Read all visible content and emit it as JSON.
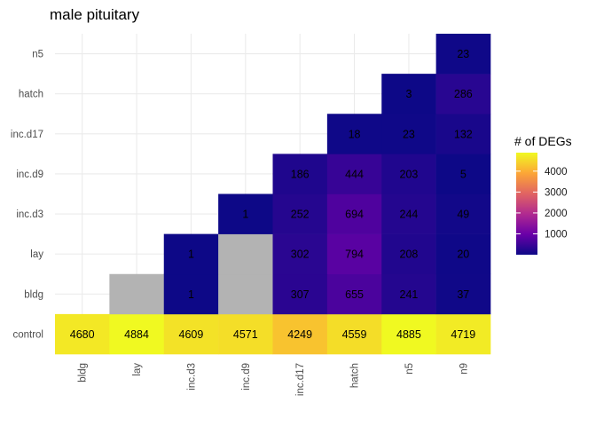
{
  "chart_data": {
    "type": "heatmap",
    "title": "male pituitary",
    "x_categories": [
      "bldg",
      "lay",
      "inc.d3",
      "inc.d9",
      "inc.d17",
      "hatch",
      "n5",
      "n9"
    ],
    "y_categories": [
      "control",
      "bldg",
      "lay",
      "inc.d3",
      "inc.d9",
      "inc.d17",
      "hatch",
      "n5"
    ],
    "cells": [
      {
        "x": "bldg",
        "y": "control",
        "value": 4680
      },
      {
        "x": "lay",
        "y": "control",
        "value": 4884
      },
      {
        "x": "inc.d3",
        "y": "control",
        "value": 4609
      },
      {
        "x": "inc.d9",
        "y": "control",
        "value": 4571
      },
      {
        "x": "inc.d17",
        "y": "control",
        "value": 4249
      },
      {
        "x": "hatch",
        "y": "control",
        "value": 4559
      },
      {
        "x": "n5",
        "y": "control",
        "value": 4885
      },
      {
        "x": "n9",
        "y": "control",
        "value": 4719
      },
      {
        "x": "lay",
        "y": "bldg",
        "value": null
      },
      {
        "x": "inc.d3",
        "y": "bldg",
        "value": 1
      },
      {
        "x": "inc.d9",
        "y": "bldg",
        "value": null
      },
      {
        "x": "inc.d17",
        "y": "bldg",
        "value": 307
      },
      {
        "x": "hatch",
        "y": "bldg",
        "value": 655
      },
      {
        "x": "n5",
        "y": "bldg",
        "value": 241
      },
      {
        "x": "n9",
        "y": "bldg",
        "value": 37
      },
      {
        "x": "inc.d3",
        "y": "lay",
        "value": 1
      },
      {
        "x": "inc.d9",
        "y": "lay",
        "value": null
      },
      {
        "x": "inc.d17",
        "y": "lay",
        "value": 302
      },
      {
        "x": "hatch",
        "y": "lay",
        "value": 794
      },
      {
        "x": "n5",
        "y": "lay",
        "value": 208
      },
      {
        "x": "n9",
        "y": "lay",
        "value": 20
      },
      {
        "x": "inc.d9",
        "y": "inc.d3",
        "value": 1
      },
      {
        "x": "inc.d17",
        "y": "inc.d3",
        "value": 252
      },
      {
        "x": "hatch",
        "y": "inc.d3",
        "value": 694
      },
      {
        "x": "n5",
        "y": "inc.d3",
        "value": 244
      },
      {
        "x": "n9",
        "y": "inc.d3",
        "value": 49
      },
      {
        "x": "inc.d17",
        "y": "inc.d9",
        "value": 186
      },
      {
        "x": "hatch",
        "y": "inc.d9",
        "value": 444
      },
      {
        "x": "n5",
        "y": "inc.d9",
        "value": 203
      },
      {
        "x": "n9",
        "y": "inc.d9",
        "value": 5
      },
      {
        "x": "hatch",
        "y": "inc.d17",
        "value": 18
      },
      {
        "x": "n5",
        "y": "inc.d17",
        "value": 23
      },
      {
        "x": "n9",
        "y": "inc.d17",
        "value": 132
      },
      {
        "x": "n5",
        "y": "hatch",
        "value": 3
      },
      {
        "x": "n9",
        "y": "hatch",
        "value": 286
      },
      {
        "x": "n9",
        "y": "n5",
        "value": 23
      }
    ],
    "na_color": "#b3b3b3",
    "legend": {
      "title": "# of DEGs",
      "ticks": [
        1000,
        2000,
        3000,
        4000
      ],
      "range": [
        1,
        4885
      ],
      "placement": "right",
      "colors": [
        "#0d0887",
        "#6a00a8",
        "#b12a90",
        "#e16462",
        "#fca636",
        "#f0f921"
      ]
    },
    "grid": true
  }
}
